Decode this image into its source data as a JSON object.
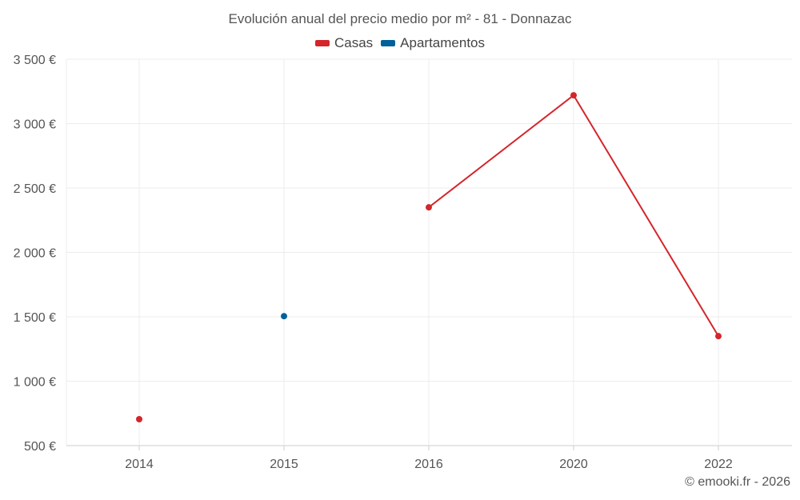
{
  "chart_data": {
    "type": "line",
    "title": "Evolución anual del precio medio por m² - 81 - Donnazac",
    "categories": [
      "2014",
      "2015",
      "2016",
      "2020",
      "2022"
    ],
    "series": [
      {
        "name": "Casas",
        "color": "#d3262b",
        "values": [
          705,
          null,
          2350,
          3220,
          1350
        ]
      },
      {
        "name": "Apartamentos",
        "color": "#00609a",
        "values": [
          null,
          1505,
          null,
          null,
          null
        ]
      }
    ],
    "ylim": [
      500,
      3500
    ],
    "yticks": [
      500,
      1000,
      1500,
      2000,
      2500,
      3000,
      3500
    ],
    "ytick_labels": [
      "500 €",
      "1 000 €",
      "1 500 €",
      "2 000 €",
      "2 500 €",
      "3 000 €",
      "3 500 €"
    ],
    "xlabel": "",
    "ylabel": "",
    "grid": true,
    "legend_position": "top-center"
  },
  "credit": "© emooki.fr - 2026"
}
